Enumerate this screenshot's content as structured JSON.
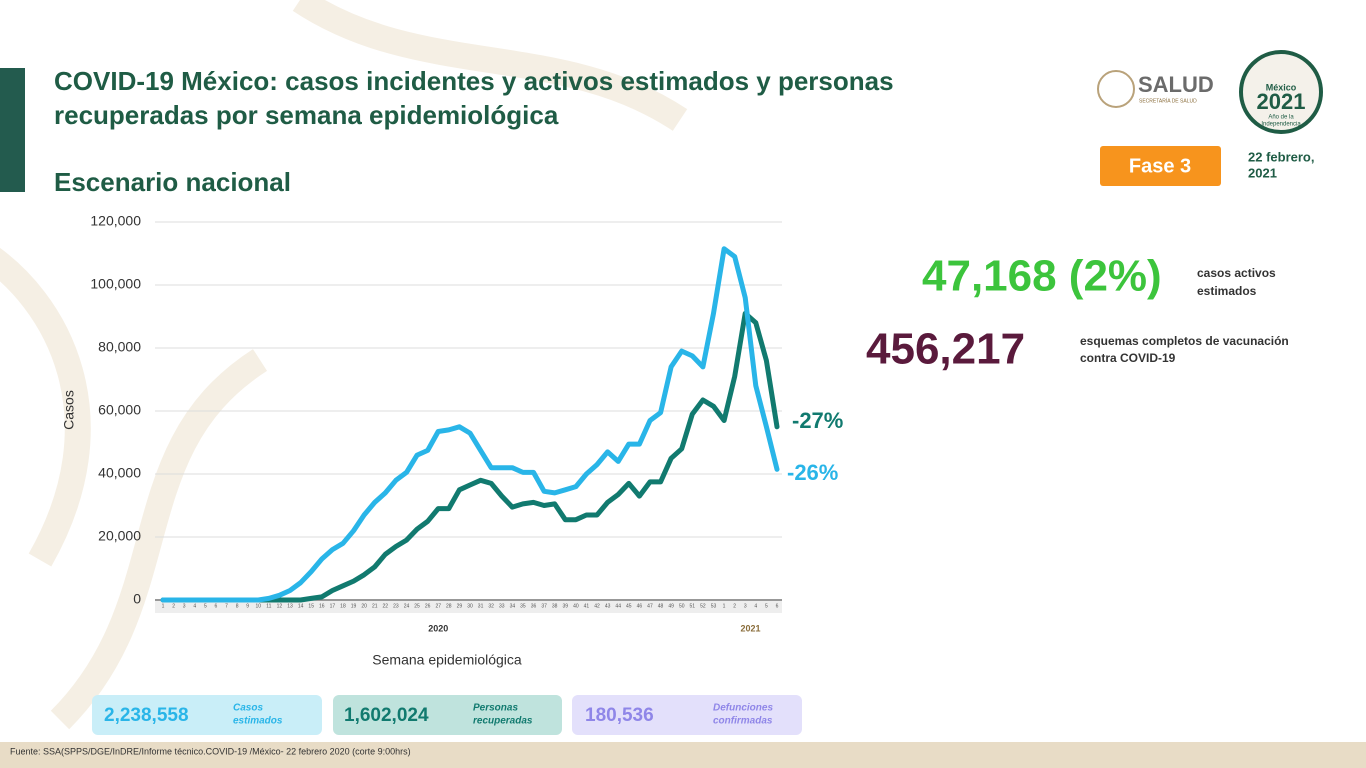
{
  "header": {
    "title_lines": [
      "COVID-19 México: casos incidentes y activos estimados y personas",
      "recuperadas por semana epidemiológica"
    ],
    "subtitle": "Escenario nacional",
    "logo_salud": "SALUD",
    "logo_salud_sub": "SECRETARÍA DE SALUD",
    "logo_2021": [
      "México",
      "2021",
      "Año de la",
      "Independencia"
    ],
    "phase": "Fase 3",
    "date_lines": [
      "22 febrero,",
      "2021"
    ]
  },
  "chart_data": {
    "type": "line",
    "ylabel": "Casos",
    "xlabel": "Semana epidemiológica",
    "x_groups": [
      "2020",
      "2021"
    ],
    "categories": [
      "1",
      "2",
      "3",
      "4",
      "5",
      "6",
      "7",
      "8",
      "9",
      "10",
      "11",
      "12",
      "13",
      "14",
      "15",
      "16",
      "17",
      "18",
      "19",
      "20",
      "21",
      "22",
      "23",
      "24",
      "25",
      "26",
      "27",
      "28",
      "29",
      "30",
      "31",
      "32",
      "33",
      "34",
      "35",
      "36",
      "37",
      "38",
      "39",
      "40",
      "41",
      "42",
      "43",
      "44",
      "45",
      "46",
      "47",
      "48",
      "49",
      "50",
      "51",
      "52",
      "53",
      "1",
      "2",
      "3",
      "4",
      "5",
      "6"
    ],
    "series": [
      {
        "color": "#29b5e8",
        "values": [
          0,
          0,
          0,
          0,
          0,
          0,
          0,
          0,
          0,
          0,
          500,
          1500,
          3000,
          5500,
          9000,
          13000,
          16000,
          18000,
          22000,
          27000,
          31000,
          34000,
          38000,
          40500,
          46000,
          47500,
          53500,
          54000,
          55000,
          53000,
          47500,
          42000,
          42000,
          42000,
          40500,
          40500,
          34500,
          34000,
          35000,
          36000,
          40000,
          43000,
          47000,
          44000,
          49500,
          49500,
          57000,
          59500,
          74000,
          79000,
          77500,
          74000,
          91000,
          111500,
          109000,
          96000,
          68000,
          55000,
          41500
        ]
      },
      {
        "color": "#117a6f",
        "values": [
          0,
          0,
          0,
          0,
          0,
          0,
          0,
          0,
          0,
          0,
          0,
          0,
          0,
          0,
          500,
          1000,
          3000,
          4500,
          6000,
          8000,
          10500,
          14500,
          17000,
          19000,
          22500,
          25000,
          29000,
          29000,
          35000,
          36500,
          38000,
          37000,
          33000,
          29500,
          30500,
          31000,
          30000,
          30500,
          25500,
          25500,
          27000,
          27000,
          31000,
          33500,
          37000,
          33000,
          37500,
          37500,
          45000,
          48000,
          59000,
          63500,
          61500,
          57000,
          71000,
          91000,
          88000,
          76000,
          55000
        ]
      }
    ],
    "annotations": [
      "-27%",
      "-26%"
    ],
    "ylim": [
      0,
      120000
    ],
    "yticks": [
      0,
      {
        "value": 20000,
        "label": "20,000"
      },
      {
        "value": 40000,
        "label": "40,000"
      },
      {
        "value": 60000,
        "label": "60,000"
      },
      {
        "value": 80000,
        "label": "80,000"
      },
      {
        "value": 100000,
        "label": "100,000"
      },
      {
        "value": 120000,
        "label": "120,000"
      }
    ],
    "grid": true
  },
  "stats": {
    "active": "47,168 (2%)",
    "active_label": [
      "casos activos",
      "estimados"
    ],
    "vaccines": "456,217",
    "vaccines_label": [
      "esquemas completos de vacunación",
      "contra COVID-19"
    ]
  },
  "boxes": [
    {
      "value": "2,238,558",
      "label": [
        "Casos",
        "estimados"
      ]
    },
    {
      "value": "1,602,024",
      "label": [
        "Personas",
        "recuperadas"
      ]
    },
    {
      "value": "180,536",
      "label": [
        "Defunciones",
        "confirmadas"
      ]
    }
  ],
  "footer": "Fuente: SSA(SPPS/DGE/InDRE/Informe técnico.COVID-19 /México- 22 febrero 2020 (corte 9:00hrs)"
}
